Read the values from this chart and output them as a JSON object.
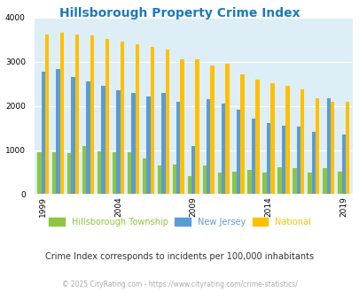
{
  "title": "Hillsborough Property Crime Index",
  "years": [
    1999,
    2000,
    2001,
    2002,
    2003,
    2004,
    2005,
    2006,
    2007,
    2008,
    2009,
    2010,
    2011,
    2012,
    2013,
    2014,
    2015,
    2016,
    2017,
    2018,
    2019
  ],
  "hillsborough": [
    950,
    960,
    940,
    1100,
    970,
    960,
    960,
    820,
    650,
    670,
    400,
    660,
    490,
    510,
    550,
    490,
    610,
    600,
    490,
    600,
    500
  ],
  "new_jersey": [
    2780,
    2840,
    2650,
    2550,
    2450,
    2350,
    2300,
    2220,
    2300,
    2090,
    1100,
    2150,
    2060,
    1920,
    1720,
    1620,
    1550,
    1540,
    1420,
    2180,
    1350
  ],
  "national": [
    3610,
    3650,
    3620,
    3600,
    3520,
    3450,
    3390,
    3340,
    3280,
    3060,
    3060,
    2910,
    2950,
    2720,
    2600,
    2510,
    2460,
    2370,
    2180,
    2090,
    2100
  ],
  "color_hillsborough": "#8dc63f",
  "color_nj": "#5b9bd5",
  "color_national": "#ffc000",
  "plot_bg": "#deeef6",
  "title_color": "#1a7abf",
  "title_fontsize": 10,
  "ylim": [
    0,
    4000
  ],
  "yticks": [
    0,
    1000,
    2000,
    3000,
    4000
  ],
  "subtitle": "Crime Index corresponds to incidents per 100,000 inhabitants",
  "footer": "© 2025 CityRating.com - https://www.cityrating.com/crime-statistics/",
  "tick_years": [
    1999,
    2004,
    2009,
    2014,
    2019
  ],
  "legend_labels": [
    "Hillsborough Township",
    "New Jersey",
    "National"
  ]
}
